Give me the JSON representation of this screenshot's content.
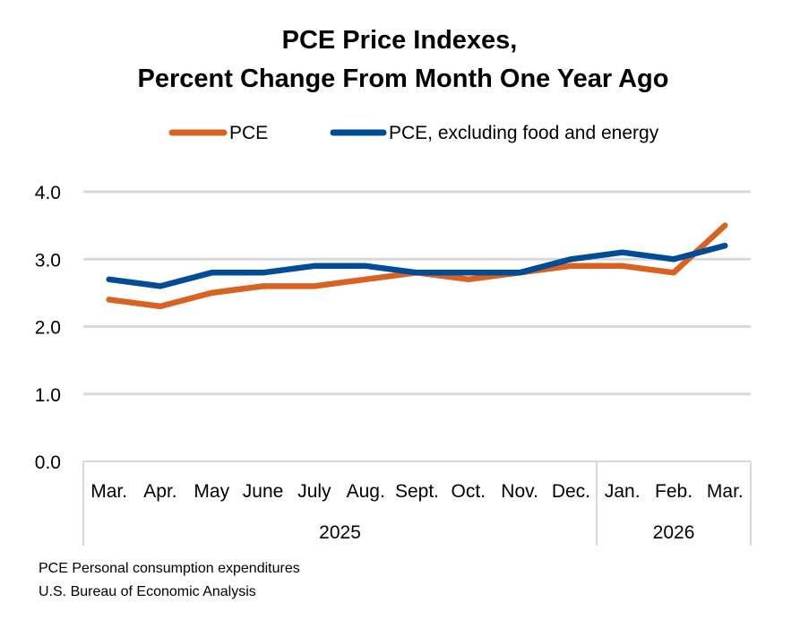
{
  "chart_data": {
    "type": "line",
    "title": [
      "PCE Price Indexes,",
      "Percent Change From Month One Year Ago"
    ],
    "categories": [
      "Mar.",
      "Apr.",
      "May",
      "June",
      "July",
      "Aug.",
      "Sept.",
      "Oct.",
      "Nov.",
      "Dec.",
      "Jan.",
      "Feb.",
      "Mar."
    ],
    "year_groups": [
      {
        "label": "2025",
        "count": 10
      },
      {
        "label": "2026",
        "count": 3
      }
    ],
    "series": [
      {
        "name": "PCE",
        "color": "#DA6221",
        "values": [
          2.4,
          2.3,
          2.5,
          2.6,
          2.6,
          2.7,
          2.8,
          2.7,
          2.8,
          2.9,
          2.9,
          2.8,
          3.5
        ]
      },
      {
        "name": "PCE, excluding food and energy",
        "color": "#004C97",
        "values": [
          2.7,
          2.6,
          2.8,
          2.8,
          2.9,
          2.9,
          2.8,
          2.8,
          2.8,
          3.0,
          3.1,
          3.0,
          3.2
        ]
      }
    ],
    "ylim": [
      0,
      4
    ],
    "yticks": [
      "0.0",
      "1.0",
      "2.0",
      "3.0",
      "4.0"
    ],
    "xlabel": "",
    "ylabel": "",
    "grid": true,
    "legend_position": "top"
  },
  "footnotes": [
    "PCE Personal consumption expenditures",
    "U.S. Bureau of Economic Analysis"
  ]
}
